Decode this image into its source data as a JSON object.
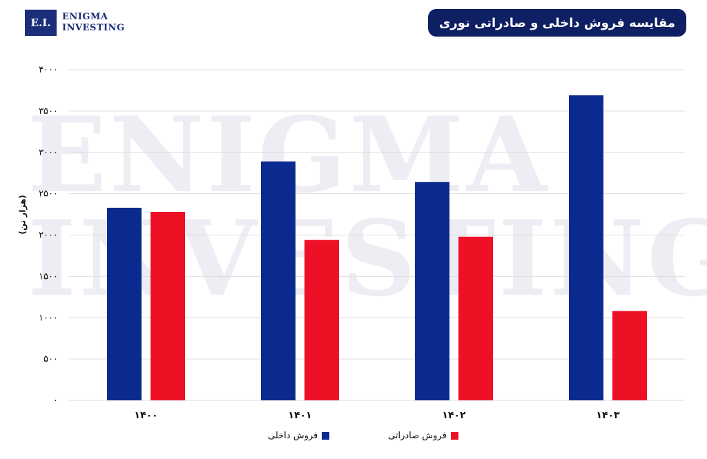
{
  "logo": {
    "mark": "E.I.",
    "line1": "ENIGMA",
    "line2": "INVESTING"
  },
  "title": "مقایسه فروش داخلی و صادراتی نوری",
  "watermark": {
    "line1": "ENIGMA",
    "line2": "INVESTING"
  },
  "colors": {
    "domestic": "#0a2a8f",
    "export": "#ee1126",
    "title_bg": "#0e1f63",
    "grid": "#dedede"
  },
  "chart_data": {
    "type": "bar",
    "categories": [
      "۱۴۰۰",
      "۱۴۰۱",
      "۱۴۰۲",
      "۱۴۰۳"
    ],
    "series": [
      {
        "name": "فروش داخلی",
        "values": [
          2330,
          2890,
          2640,
          3690
        ]
      },
      {
        "name": "فروش صادراتی",
        "values": [
          2280,
          1940,
          1980,
          1080
        ]
      }
    ],
    "ylabel": "(هزار تن)",
    "ylim": [
      0,
      4000
    ],
    "yticks": [
      0,
      500,
      1000,
      1500,
      2000,
      2500,
      3000,
      3500,
      4000
    ],
    "ytick_labels": [
      "۰",
      "۵۰۰",
      "۱۰۰۰",
      "۱۵۰۰",
      "۲۰۰۰",
      "۲۵۰۰",
      "۳۰۰۰",
      "۳۵۰۰",
      "۴۰۰۰"
    ],
    "grid": true,
    "legend_position": "bottom"
  }
}
